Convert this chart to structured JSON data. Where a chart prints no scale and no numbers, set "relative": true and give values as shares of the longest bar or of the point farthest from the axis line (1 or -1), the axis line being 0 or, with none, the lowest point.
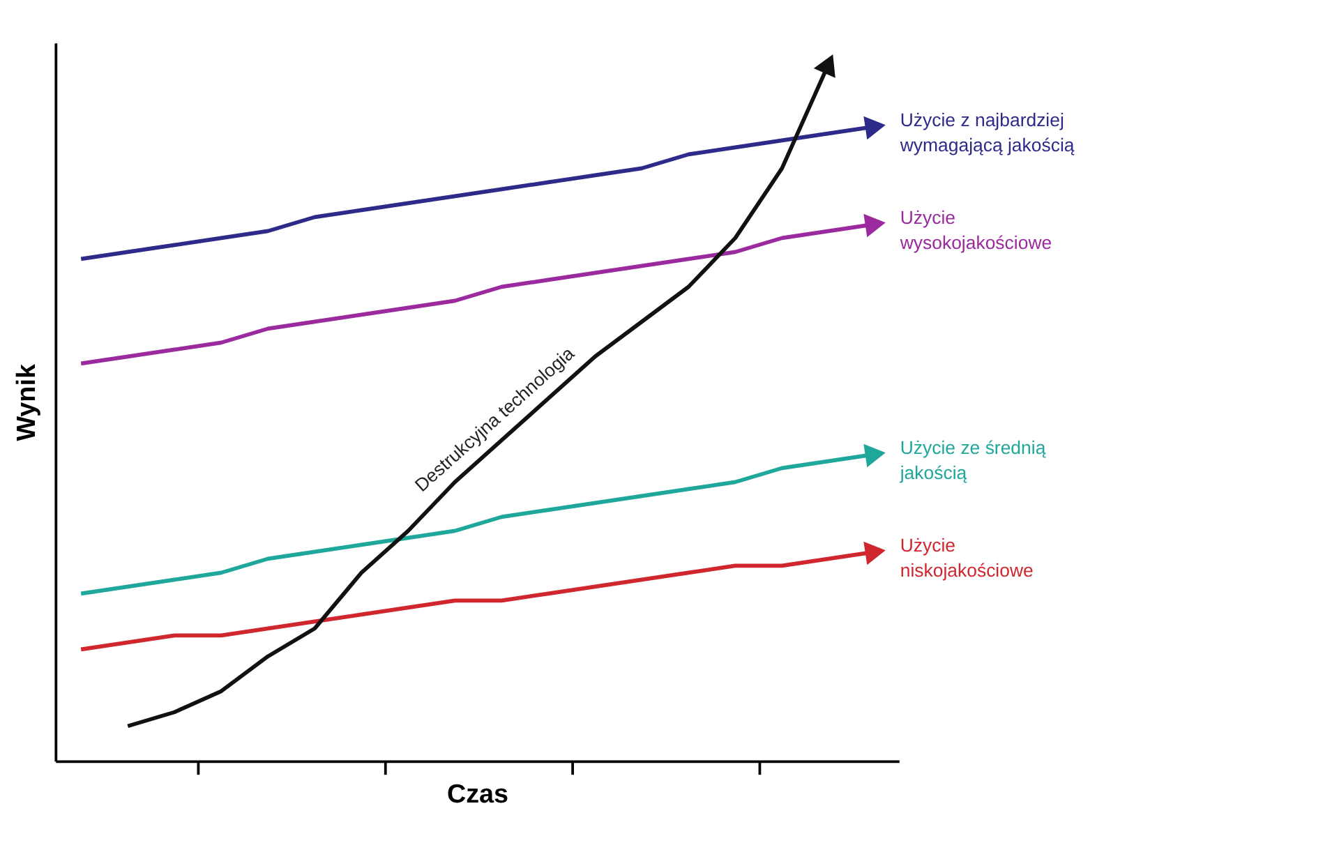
{
  "chart_data": {
    "type": "line",
    "xlabel": "Czas",
    "ylabel": "Wynik",
    "relative": true,
    "grid": false,
    "legend": false,
    "tick_labels": false,
    "categories": [
      null,
      null,
      null,
      null,
      null,
      null,
      null,
      null,
      null,
      null,
      null,
      null,
      null,
      null,
      null,
      null,
      null,
      null
    ],
    "series": [
      {
        "name": "Użycie z najbardziej\nwymagającą jakością",
        "color": "#2e2a8a",
        "values": [
          0.72,
          0.73,
          0.74,
          0.75,
          0.76,
          0.78,
          0.79,
          0.8,
          0.81,
          0.82,
          0.83,
          0.84,
          0.85,
          0.87,
          0.88,
          0.89,
          0.9,
          0.91
        ]
      },
      {
        "name": "Użycie\nwysokojakościowe",
        "color": "#9b2a9e",
        "values": [
          0.57,
          0.58,
          0.59,
          0.6,
          0.62,
          0.63,
          0.64,
          0.65,
          0.66,
          0.68,
          0.69,
          0.7,
          0.71,
          0.72,
          0.73,
          0.75,
          0.76,
          0.77
        ]
      },
      {
        "name": "Użycie ze średnią\njakością",
        "color": "#1fa79b",
        "values": [
          0.24,
          0.25,
          0.26,
          0.27,
          0.29,
          0.3,
          0.31,
          0.32,
          0.33,
          0.35,
          0.36,
          0.37,
          0.38,
          0.39,
          0.4,
          0.42,
          0.43,
          0.44
        ]
      },
      {
        "name": "Użycie\nniskojakościowe",
        "color": "#d0262e",
        "values": [
          0.16,
          0.17,
          0.18,
          0.18,
          0.19,
          0.2,
          0.21,
          0.22,
          0.23,
          0.23,
          0.24,
          0.25,
          0.26,
          0.27,
          0.28,
          0.28,
          0.29,
          0.3
        ]
      },
      {
        "name": "Destrukcyjna technologia",
        "color": "#111111",
        "values": [
          null,
          0.05,
          0.07,
          0.1,
          0.15,
          0.19,
          0.27,
          0.33,
          0.4,
          0.46,
          0.52,
          0.58,
          0.63,
          0.68,
          0.75,
          0.85,
          1.0,
          null
        ]
      }
    ]
  }
}
